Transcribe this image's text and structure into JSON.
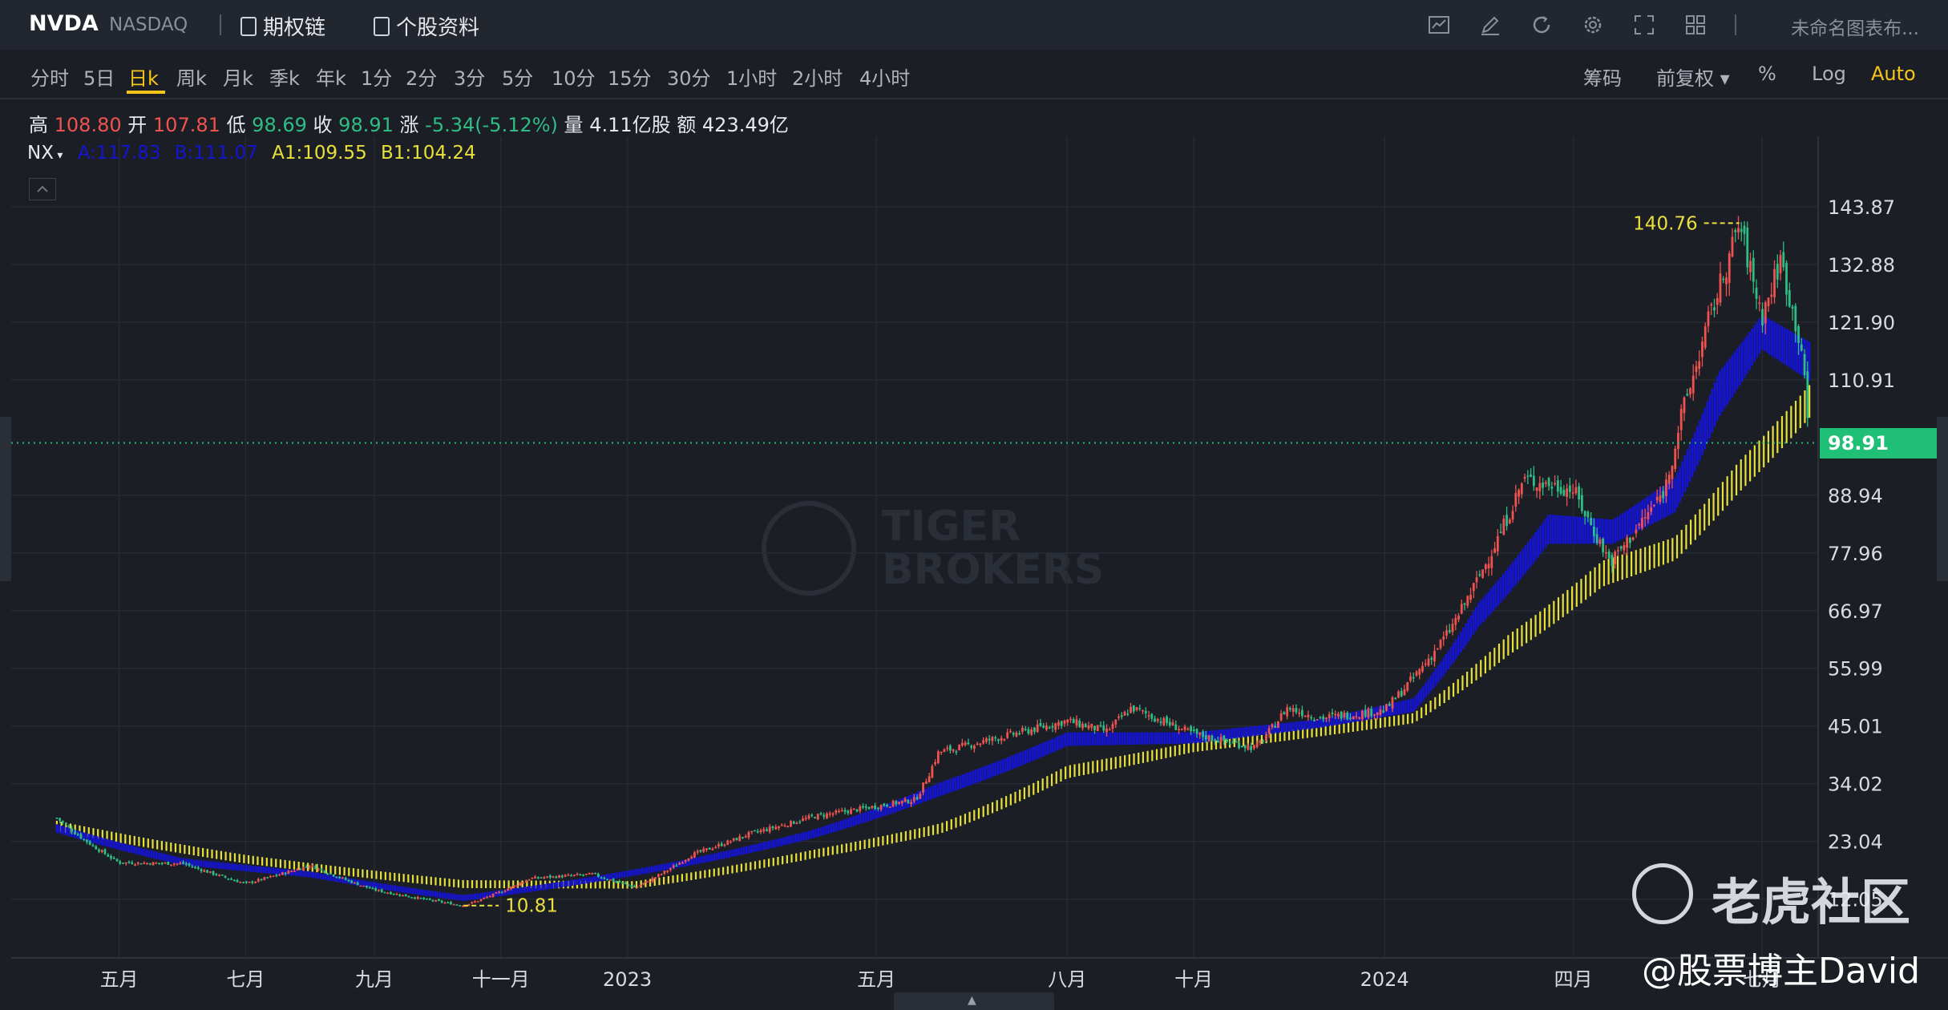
{
  "header": {
    "ticker": "NVDA",
    "exchange": "NASDAQ",
    "option_chain": "期权链",
    "stock_info": "个股资料",
    "layout_label": "未命名图表布...",
    "toolbar_icons": [
      "indicator-icon",
      "draw-icon",
      "refresh-icon",
      "settings-icon",
      "fullscreen-icon",
      "layout-grid-icon"
    ]
  },
  "periods": [
    "分时",
    "5日",
    "日k",
    "周k",
    "月k",
    "季k",
    "年k",
    "1分",
    "2分",
    "3分",
    "5分",
    "10分",
    "15分",
    "30分",
    "1小时",
    "2小时",
    "4小时"
  ],
  "active_period": "日k",
  "right_tools": {
    "chips": "筹码",
    "adjust": "前复权",
    "percent": "%",
    "log": "Log",
    "auto": "Auto"
  },
  "ohlc": {
    "high_label": "高",
    "high": "108.80",
    "open_label": "开",
    "open": "107.81",
    "low_label": "低",
    "low": "98.69",
    "close_label": "收",
    "close": "98.91",
    "change_label": "涨",
    "change": "-5.34(-5.12%)",
    "volume_label": "量",
    "volume": "4.11亿股",
    "amount_label": "额",
    "amount": "423.49亿"
  },
  "indicator": {
    "name": "NX",
    "a": "A:117.83",
    "b": "B:111.07",
    "a1": "A1:109.55",
    "b1": "B1:104.24"
  },
  "watermark": {
    "brand_line1": "TIGER",
    "brand_line2": "BROKERS",
    "community": "老虎社区",
    "author": "@股票博主David"
  },
  "colors": {
    "up": "#ef5350",
    "down": "#2ebd85",
    "fast_band": "#1414d2",
    "slow_band": "#e8e03a",
    "accent": "#f5c518",
    "current": "#1fbf75"
  },
  "chart_data": {
    "type": "candlestick",
    "title": "NVDA",
    "scale": "log",
    "y_ticks": [
      "143.87",
      "132.88",
      "121.90",
      "110.91",
      "88.94",
      "77.96",
      "66.97",
      "55.99",
      "45.01",
      "34.02",
      "23.04",
      "12.05"
    ],
    "x_ticks": [
      "五月",
      "七月",
      "九月",
      "十一月",
      "2023",
      "五月",
      "八月",
      "十月",
      "2024",
      "四月",
      "七月"
    ],
    "current_price": "98.91",
    "max_marker": "140.76",
    "min_marker": "10.81",
    "close_path": [
      {
        "date": "2022-04-01",
        "value": 27.5
      },
      {
        "date": "2022-05-01",
        "value": 19.0
      },
      {
        "date": "2022-06-01",
        "value": 18.8
      },
      {
        "date": "2022-07-01",
        "value": 15.0
      },
      {
        "date": "2022-08-01",
        "value": 18.5
      },
      {
        "date": "2022-09-01",
        "value": 13.8
      },
      {
        "date": "2022-10-14",
        "value": 10.81
      },
      {
        "date": "2022-11-15",
        "value": 16.0
      },
      {
        "date": "2022-12-15",
        "value": 16.8
      },
      {
        "date": "2023-01-05",
        "value": 14.3
      },
      {
        "date": "2023-02-01",
        "value": 20.5
      },
      {
        "date": "2023-03-01",
        "value": 24.5
      },
      {
        "date": "2023-04-01",
        "value": 27.8
      },
      {
        "date": "2023-05-20",
        "value": 31.0
      },
      {
        "date": "2023-05-31",
        "value": 40.0
      },
      {
        "date": "2023-07-01",
        "value": 43.0
      },
      {
        "date": "2023-08-01",
        "value": 46.0
      },
      {
        "date": "2023-08-20",
        "value": 44.0
      },
      {
        "date": "2023-09-01",
        "value": 48.5
      },
      {
        "date": "2023-10-01",
        "value": 43.5
      },
      {
        "date": "2023-10-31",
        "value": 40.8
      },
      {
        "date": "2023-11-15",
        "value": 48.5
      },
      {
        "date": "2023-12-01",
        "value": 46.5
      },
      {
        "date": "2024-01-01",
        "value": 48.0
      },
      {
        "date": "2024-02-01",
        "value": 63.0
      },
      {
        "date": "2024-03-08",
        "value": 92.0
      },
      {
        "date": "2024-04-01",
        "value": 90.0
      },
      {
        "date": "2024-04-19",
        "value": 76.2
      },
      {
        "date": "2024-05-15",
        "value": 90.0
      },
      {
        "date": "2024-05-23",
        "value": 104.0
      },
      {
        "date": "2024-06-05",
        "value": 122.0
      },
      {
        "date": "2024-06-20",
        "value": 140.76
      },
      {
        "date": "2024-07-01",
        "value": 123.0
      },
      {
        "date": "2024-07-10",
        "value": 134.0
      },
      {
        "date": "2024-07-20",
        "value": 117.0
      },
      {
        "date": "2024-07-24",
        "value": 98.91
      }
    ],
    "series": [
      {
        "name": "A",
        "values": [
          {
            "date": "2022-04-01",
            "value": 26.0
          },
          {
            "date": "2022-06-01",
            "value": 19.5
          },
          {
            "date": "2022-08-01",
            "value": 17.0
          },
          {
            "date": "2022-10-14",
            "value": 12.5
          },
          {
            "date": "2022-12-15",
            "value": 16.0
          },
          {
            "date": "2023-02-01",
            "value": 19.5
          },
          {
            "date": "2023-04-01",
            "value": 25.0
          },
          {
            "date": "2023-06-01",
            "value": 34.0
          },
          {
            "date": "2023-08-01",
            "value": 43.5
          },
          {
            "date": "2023-10-01",
            "value": 43.5
          },
          {
            "date": "2023-12-01",
            "value": 46.0
          },
          {
            "date": "2024-01-15",
            "value": 50.0
          },
          {
            "date": "2024-02-15",
            "value": 68.0
          },
          {
            "date": "2024-03-20",
            "value": 85.0
          },
          {
            "date": "2024-04-20",
            "value": 84.0
          },
          {
            "date": "2024-05-20",
            "value": 92.0
          },
          {
            "date": "2024-06-10",
            "value": 112.0
          },
          {
            "date": "2024-07-01",
            "value": 123.0
          },
          {
            "date": "2024-07-24",
            "value": 117.83
          }
        ]
      },
      {
        "name": "B",
        "values": [
          {
            "date": "2022-04-01",
            "value": 25.0
          },
          {
            "date": "2022-06-01",
            "value": 18.8
          },
          {
            "date": "2022-08-01",
            "value": 16.5
          },
          {
            "date": "2022-10-14",
            "value": 12.0
          },
          {
            "date": "2022-12-15",
            "value": 15.5
          },
          {
            "date": "2023-02-01",
            "value": 18.8
          },
          {
            "date": "2023-04-01",
            "value": 24.0
          },
          {
            "date": "2023-06-01",
            "value": 32.0
          },
          {
            "date": "2023-08-01",
            "value": 41.5
          },
          {
            "date": "2023-10-01",
            "value": 42.0
          },
          {
            "date": "2023-12-01",
            "value": 45.0
          },
          {
            "date": "2024-01-15",
            "value": 48.0
          },
          {
            "date": "2024-02-15",
            "value": 64.0
          },
          {
            "date": "2024-03-20",
            "value": 80.0
          },
          {
            "date": "2024-04-20",
            "value": 80.0
          },
          {
            "date": "2024-05-20",
            "value": 86.0
          },
          {
            "date": "2024-06-10",
            "value": 104.0
          },
          {
            "date": "2024-07-01",
            "value": 117.0
          },
          {
            "date": "2024-07-24",
            "value": 111.07
          }
        ]
      },
      {
        "name": "A1",
        "values": [
          {
            "date": "2022-04-01",
            "value": 26.5
          },
          {
            "date": "2022-07-01",
            "value": 20.0
          },
          {
            "date": "2022-10-14",
            "value": 15.2
          },
          {
            "date": "2023-01-05",
            "value": 15.0
          },
          {
            "date": "2023-04-01",
            "value": 21.0
          },
          {
            "date": "2023-06-01",
            "value": 26.0
          },
          {
            "date": "2023-08-01",
            "value": 37.0
          },
          {
            "date": "2023-10-01",
            "value": 41.5
          },
          {
            "date": "2023-12-01",
            "value": 44.5
          },
          {
            "date": "2024-01-15",
            "value": 47.0
          },
          {
            "date": "2024-03-01",
            "value": 62.0
          },
          {
            "date": "2024-04-15",
            "value": 76.0
          },
          {
            "date": "2024-05-20",
            "value": 80.5
          },
          {
            "date": "2024-06-20",
            "value": 95.0
          },
          {
            "date": "2024-07-24",
            "value": 109.55
          }
        ]
      },
      {
        "name": "B1",
        "values": [
          {
            "date": "2022-04-01",
            "value": 25.5
          },
          {
            "date": "2022-07-01",
            "value": 19.3
          },
          {
            "date": "2022-10-14",
            "value": 14.6
          },
          {
            "date": "2023-01-05",
            "value": 14.5
          },
          {
            "date": "2023-04-01",
            "value": 20.3
          },
          {
            "date": "2023-06-01",
            "value": 25.0
          },
          {
            "date": "2023-08-01",
            "value": 35.5
          },
          {
            "date": "2023-10-01",
            "value": 40.5
          },
          {
            "date": "2023-12-01",
            "value": 43.5
          },
          {
            "date": "2024-01-15",
            "value": 46.0
          },
          {
            "date": "2024-03-01",
            "value": 59.0
          },
          {
            "date": "2024-04-15",
            "value": 72.0
          },
          {
            "date": "2024-05-20",
            "value": 77.0
          },
          {
            "date": "2024-06-20",
            "value": 90.0
          },
          {
            "date": "2024-07-24",
            "value": 104.24
          }
        ]
      }
    ]
  }
}
